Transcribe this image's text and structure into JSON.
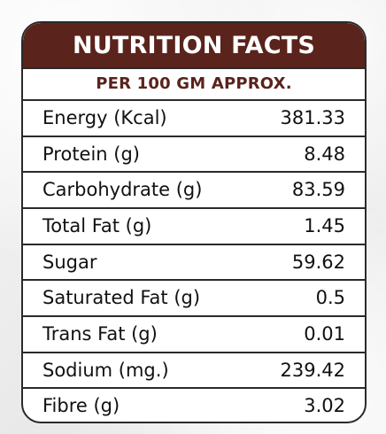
{
  "nutrition": {
    "title": "NUTRITION FACTS",
    "subtitle": "PER 100 GM APPROX.",
    "rows": [
      {
        "label": "Energy (Kcal)",
        "value": "381.33"
      },
      {
        "label": "Protein (g)",
        "value": "8.48"
      },
      {
        "label": "Carbohydrate (g)",
        "value": "83.59"
      },
      {
        "label": "Total Fat (g)",
        "value": "1.45"
      },
      {
        "label": "Sugar",
        "value": "59.62"
      },
      {
        "label": "Saturated Fat (g)",
        "value": "0.5"
      },
      {
        "label": "Trans Fat (g)",
        "value": "0.01"
      },
      {
        "label": "Sodium (mg.)",
        "value": "239.42"
      },
      {
        "label": "Fibre (g)",
        "value": "3.02"
      }
    ]
  },
  "colors": {
    "header_bg": "#5a231c",
    "border": "#2a2a2a",
    "subtitle_text": "#5a231c"
  }
}
